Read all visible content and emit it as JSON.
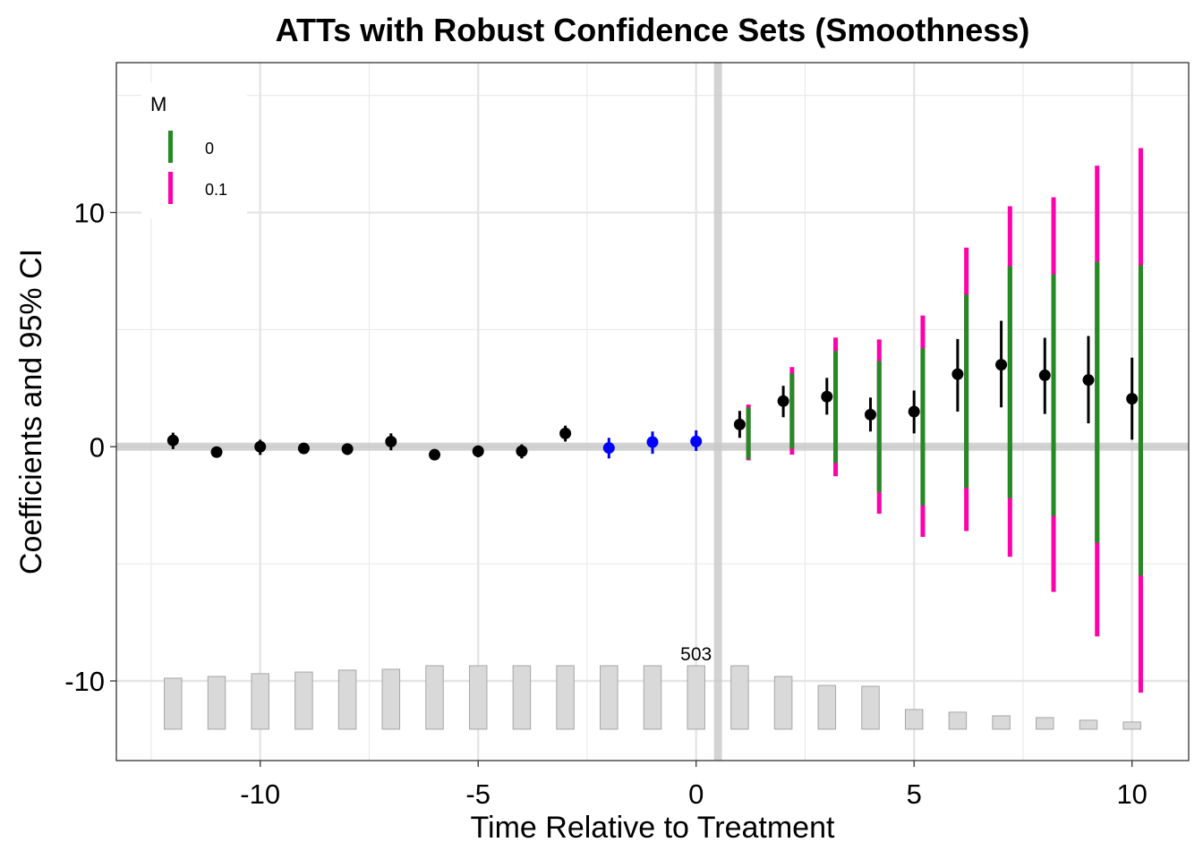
{
  "chart_data": {
    "type": "scatter",
    "title": "ATTs with Robust Confidence Sets (Smoothness)",
    "xlabel": "Time Relative to Treatment",
    "ylabel": "Coefficients and 95% CI",
    "xlim": [
      -13.3,
      11.3
    ],
    "ylim": [
      -13.4,
      16.4
    ],
    "xticks": [
      -10,
      -5,
      0,
      5,
      10
    ],
    "xtick_labels": [
      "-10",
      "-5",
      "0",
      "5",
      "10"
    ],
    "yticks": [
      -10,
      0,
      10
    ],
    "ytick_labels": [
      "-10",
      "0",
      "10"
    ],
    "grid": true,
    "reference_lines": {
      "horizontal_y": 0,
      "vertical_x": 0.5
    },
    "legend": {
      "title": "M",
      "placement": "top-left",
      "entries": [
        {
          "label": "0",
          "color": "#228B22"
        },
        {
          "label": "0.1",
          "color": "#FF00AA"
        }
      ]
    },
    "colors": {
      "pre": "#000000",
      "placebo": "#0000FF",
      "post": "#000000",
      "bars": "#D9D9D9",
      "bar_border": "#A6A6A6",
      "ref_line": "#C8C8C8"
    },
    "estimates": [
      {
        "x": -12,
        "y": 0.27,
        "ci_low": -0.1,
        "ci_high": 0.6,
        "group": "pre"
      },
      {
        "x": -11,
        "y": -0.23,
        "ci_low": -0.35,
        "ci_high": -0.1,
        "group": "pre"
      },
      {
        "x": -10,
        "y": 0.0,
        "ci_low": -0.35,
        "ci_high": 0.3,
        "group": "pre"
      },
      {
        "x": -9,
        "y": -0.07,
        "ci_low": -0.25,
        "ci_high": 0.15,
        "group": "pre"
      },
      {
        "x": -8,
        "y": -0.1,
        "ci_low": -0.35,
        "ci_high": 0.1,
        "group": "pre"
      },
      {
        "x": -7,
        "y": 0.22,
        "ci_low": -0.15,
        "ci_high": 0.57,
        "group": "pre"
      },
      {
        "x": -6,
        "y": -0.34,
        "ci_low": -0.45,
        "ci_high": -0.22,
        "group": "pre"
      },
      {
        "x": -5,
        "y": -0.19,
        "ci_low": -0.45,
        "ci_high": 0.05,
        "group": "pre"
      },
      {
        "x": -4,
        "y": -0.19,
        "ci_low": -0.5,
        "ci_high": 0.1,
        "group": "pre"
      },
      {
        "x": -3,
        "y": 0.57,
        "ci_low": 0.22,
        "ci_high": 0.9,
        "group": "pre"
      },
      {
        "x": -2,
        "y": -0.05,
        "ci_low": -0.5,
        "ci_high": 0.38,
        "group": "placebo"
      },
      {
        "x": -1,
        "y": 0.2,
        "ci_low": -0.3,
        "ci_high": 0.65,
        "group": "placebo"
      },
      {
        "x": 0,
        "y": 0.23,
        "ci_low": -0.18,
        "ci_high": 0.7,
        "group": "placebo"
      },
      {
        "x": 1,
        "y": 0.95,
        "ci_low": 0.38,
        "ci_high": 1.53,
        "group": "post"
      },
      {
        "x": 2,
        "y": 1.95,
        "ci_low": 1.26,
        "ci_high": 2.6,
        "group": "post"
      },
      {
        "x": 3,
        "y": 2.14,
        "ci_low": 1.37,
        "ci_high": 2.94,
        "group": "post"
      },
      {
        "x": 4,
        "y": 1.37,
        "ci_low": 0.65,
        "ci_high": 2.1,
        "group": "post"
      },
      {
        "x": 5,
        "y": 1.5,
        "ci_low": 0.57,
        "ci_high": 2.4,
        "group": "post"
      },
      {
        "x": 6,
        "y": 3.1,
        "ci_low": 1.5,
        "ci_high": 4.6,
        "group": "post"
      },
      {
        "x": 7,
        "y": 3.5,
        "ci_low": 1.68,
        "ci_high": 5.38,
        "group": "post"
      },
      {
        "x": 8,
        "y": 3.05,
        "ci_low": 1.4,
        "ci_high": 4.65,
        "group": "post"
      },
      {
        "x": 9,
        "y": 2.85,
        "ci_low": 1.0,
        "ci_high": 4.73,
        "group": "post"
      },
      {
        "x": 10,
        "y": 2.05,
        "ci_low": 0.3,
        "ci_high": 3.8,
        "group": "post"
      }
    ],
    "robust_sets": [
      {
        "x": 1,
        "M0": [
          -0.53,
          1.68
        ],
        "M0.1": [
          -0.58,
          1.8
        ]
      },
      {
        "x": 2,
        "M0": [
          -0.08,
          3.13
        ],
        "M0.1": [
          -0.34,
          3.4
        ]
      },
      {
        "x": 3,
        "M0": [
          -0.69,
          4.08
        ],
        "M0.1": [
          -1.26,
          4.66
        ]
      },
      {
        "x": 4,
        "M0": [
          -1.95,
          3.66
        ],
        "M0.1": [
          -2.86,
          4.58
        ]
      },
      {
        "x": 5,
        "M0": [
          -2.5,
          4.2
        ],
        "M0.1": [
          -3.85,
          5.6
        ]
      },
      {
        "x": 6,
        "M0": [
          -1.75,
          6.5
        ],
        "M0.1": [
          -3.6,
          8.5
        ]
      },
      {
        "x": 7,
        "M0": [
          -2.2,
          7.7
        ],
        "M0.1": [
          -4.7,
          10.27
        ]
      },
      {
        "x": 8,
        "M0": [
          -2.95,
          7.35
        ],
        "M0.1": [
          -6.2,
          10.65
        ]
      },
      {
        "x": 9,
        "M0": [
          -4.1,
          7.9
        ],
        "M0.1": [
          -8.1,
          12.0
        ]
      },
      {
        "x": 10,
        "M0": [
          -5.5,
          7.75
        ],
        "M0.1": [
          -10.5,
          12.75
        ]
      }
    ],
    "sample_size_bars": {
      "x": [
        -12,
        -11,
        -10,
        -9,
        -8,
        -7,
        -6,
        -5,
        -4,
        -3,
        -2,
        -1,
        0,
        1,
        2,
        3,
        4,
        5,
        6,
        7,
        8,
        9,
        10
      ],
      "counts": [
        404,
        418,
        440,
        453,
        468,
        475,
        503,
        503,
        503,
        503,
        503,
        503,
        503,
        503,
        418,
        347,
        340,
        156,
        135,
        106,
        92,
        71,
        57
      ],
      "max_label": "503",
      "max_label_x": 0,
      "baseline_y": -12.06,
      "max_height_units": 2.71
    }
  }
}
